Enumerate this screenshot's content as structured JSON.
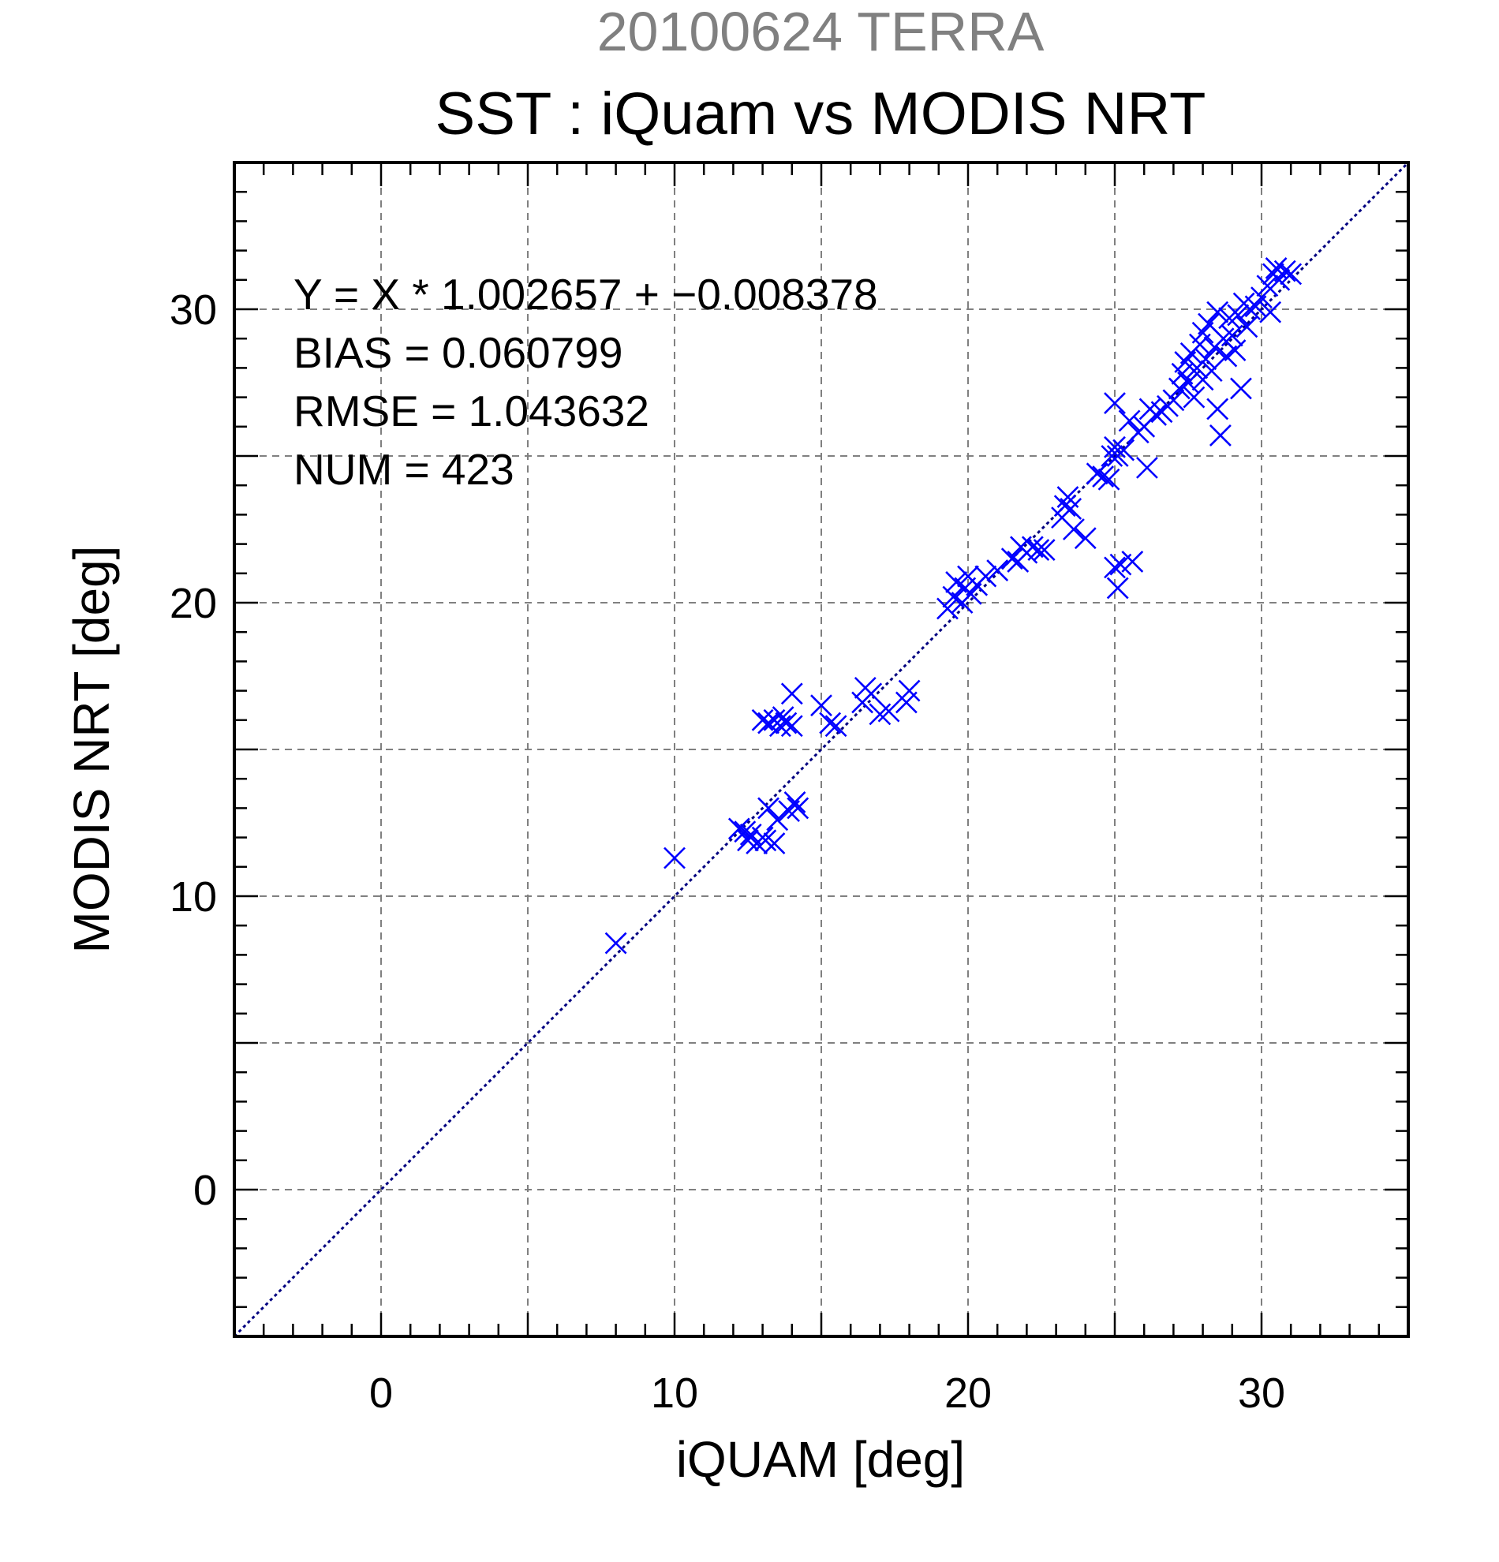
{
  "chart_data": {
    "type": "scatter",
    "date_label": "20100624 TERRA",
    "title": "SST : iQuam vs MODIS NRT",
    "xlabel": "iQUAM [deg]",
    "ylabel": "MODIS NRT [deg]",
    "xlim": [
      -5,
      35
    ],
    "ylim": [
      -5,
      35
    ],
    "xticks": [
      0,
      10,
      20,
      30
    ],
    "yticks": [
      0,
      10,
      20,
      30
    ],
    "minor_tick_step": 1,
    "grid": true,
    "marker": "x",
    "marker_color": "#0000ff",
    "reference_line": {
      "slope": 1,
      "intercept": 0,
      "color": "#000080",
      "style": "dotted"
    },
    "stats": {
      "equation": "Y = X * 1.002657 + −0.008378",
      "bias": "BIAS = 0.060799",
      "rmse": "RMSE = 1.043632",
      "num": "NUM = 423"
    },
    "points": [
      [
        8.0,
        8.4
      ],
      [
        10.0,
        11.3
      ],
      [
        12.2,
        12.3
      ],
      [
        12.4,
        12.2
      ],
      [
        12.5,
        11.9
      ],
      [
        12.6,
        12.1
      ],
      [
        12.8,
        11.8
      ],
      [
        13.0,
        12.0
      ],
      [
        13.1,
        11.9
      ],
      [
        13.2,
        13.0
      ],
      [
        13.4,
        11.8
      ],
      [
        13.5,
        12.6
      ],
      [
        13.0,
        16.0
      ],
      [
        13.2,
        15.9
      ],
      [
        13.4,
        16.0
      ],
      [
        13.6,
        15.8
      ],
      [
        13.7,
        16.1
      ],
      [
        13.8,
        15.9
      ],
      [
        14.0,
        15.8
      ],
      [
        14.0,
        16.9
      ],
      [
        13.9,
        12.9
      ],
      [
        14.1,
        13.2
      ],
      [
        14.2,
        13.0
      ],
      [
        15.0,
        16.5
      ],
      [
        15.3,
        15.9
      ],
      [
        15.5,
        15.8
      ],
      [
        16.4,
        16.6
      ],
      [
        16.5,
        17.1
      ],
      [
        16.7,
        16.9
      ],
      [
        17.0,
        16.2
      ],
      [
        17.3,
        16.3
      ],
      [
        17.9,
        16.6
      ],
      [
        18.0,
        17.0
      ],
      [
        19.3,
        19.8
      ],
      [
        19.5,
        20.2
      ],
      [
        19.6,
        20.7
      ],
      [
        19.8,
        20.0
      ],
      [
        19.9,
        20.5
      ],
      [
        20.0,
        20.9
      ],
      [
        20.1,
        20.3
      ],
      [
        20.3,
        20.6
      ],
      [
        20.6,
        20.9
      ],
      [
        21.0,
        21.1
      ],
      [
        21.5,
        21.5
      ],
      [
        21.7,
        21.4
      ],
      [
        21.8,
        21.9
      ],
      [
        22.0,
        21.7
      ],
      [
        22.2,
        21.9
      ],
      [
        22.4,
        21.8
      ],
      [
        22.6,
        21.8
      ],
      [
        23.2,
        22.9
      ],
      [
        23.3,
        23.3
      ],
      [
        23.4,
        23.6
      ],
      [
        23.5,
        23.2
      ],
      [
        23.6,
        22.5
      ],
      [
        24.0,
        22.2
      ],
      [
        24.4,
        24.4
      ],
      [
        24.6,
        24.3
      ],
      [
        24.8,
        24.2
      ],
      [
        24.9,
        25.0
      ],
      [
        25.0,
        25.3
      ],
      [
        25.1,
        25.0
      ],
      [
        25.3,
        25.2
      ],
      [
        25.0,
        26.8
      ],
      [
        25.5,
        26.2
      ],
      [
        25.0,
        21.2
      ],
      [
        25.1,
        20.5
      ],
      [
        25.2,
        21.3
      ],
      [
        25.6,
        21.4
      ],
      [
        25.8,
        25.8
      ],
      [
        26.0,
        26.0
      ],
      [
        26.1,
        24.6
      ],
      [
        26.2,
        26.6
      ],
      [
        26.4,
        26.4
      ],
      [
        26.6,
        26.5
      ],
      [
        26.8,
        26.7
      ],
      [
        27.0,
        26.9
      ],
      [
        27.2,
        27.3
      ],
      [
        27.3,
        27.8
      ],
      [
        27.4,
        28.2
      ],
      [
        27.5,
        27.5
      ],
      [
        27.6,
        28.5
      ],
      [
        27.7,
        27.0
      ],
      [
        27.8,
        28.0
      ],
      [
        27.9,
        28.8
      ],
      [
        28.0,
        27.6
      ],
      [
        28.0,
        29.2
      ],
      [
        28.1,
        28.3
      ],
      [
        28.2,
        29.5
      ],
      [
        28.3,
        27.9
      ],
      [
        28.4,
        28.7
      ],
      [
        28.5,
        29.9
      ],
      [
        28.5,
        26.6
      ],
      [
        28.6,
        25.7
      ],
      [
        28.7,
        29.0
      ],
      [
        28.8,
        28.4
      ],
      [
        28.9,
        29.7
      ],
      [
        29.0,
        29.1
      ],
      [
        29.1,
        28.6
      ],
      [
        29.2,
        29.8
      ],
      [
        29.3,
        27.3
      ],
      [
        29.4,
        30.2
      ],
      [
        29.5,
        29.4
      ],
      [
        29.6,
        30.0
      ],
      [
        29.8,
        30.1
      ],
      [
        30.0,
        30.4
      ],
      [
        30.2,
        30.8
      ],
      [
        30.3,
        29.9
      ],
      [
        30.4,
        31.2
      ],
      [
        30.5,
        31.4
      ],
      [
        30.6,
        31.0
      ],
      [
        30.8,
        31.3
      ],
      [
        31.0,
        31.2
      ]
    ]
  }
}
